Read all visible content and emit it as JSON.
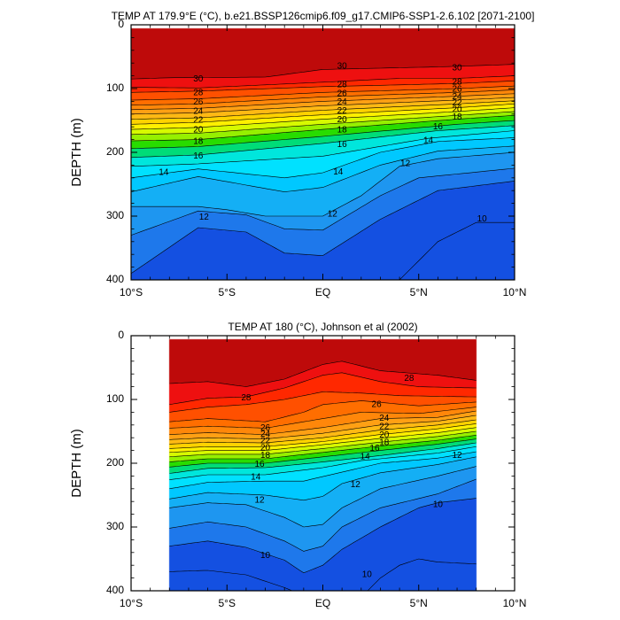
{
  "chart_data": [
    {
      "type": "heatmap",
      "subtype": "filled-contour",
      "title": "TEMP AT 179.9°E (°C), b.e21.BSSP126cmip6.f09_g17.CMIP6-SSP1-2.6.102 [2071-2100]",
      "ylabel": "DEPTH (m)",
      "xlabel": "",
      "x_ticks": [
        "10°S",
        "5°S",
        "EQ",
        "5°N",
        "10°N"
      ],
      "x_tick_values": [
        -10,
        -5,
        0,
        5,
        10
      ],
      "xlim": [
        -10,
        10
      ],
      "y_ticks": [
        "0",
        "100",
        "200",
        "300",
        "400"
      ],
      "y_tick_values": [
        0,
        100,
        200,
        300,
        400
      ],
      "ylim": [
        0,
        400
      ],
      "y_inverted": true,
      "data_xlim": [
        -10,
        10
      ],
      "data_ylim": [
        5,
        400
      ],
      "contour_interval": 1,
      "contour_labels": [
        {
          "v": 30,
          "x": -6.5,
          "y": 85
        },
        {
          "v": 28,
          "x": -6.5,
          "y": 107
        },
        {
          "v": 26,
          "x": -6.5,
          "y": 121
        },
        {
          "v": 24,
          "x": -6.5,
          "y": 136
        },
        {
          "v": 22,
          "x": -6.5,
          "y": 150
        },
        {
          "v": 20,
          "x": -6.5,
          "y": 165
        },
        {
          "v": 18,
          "x": -6.5,
          "y": 183
        },
        {
          "v": 16,
          "x": -6.5,
          "y": 206
        },
        {
          "v": 14,
          "x": -8.3,
          "y": 232
        },
        {
          "v": 12,
          "x": -6.2,
          "y": 302
        },
        {
          "v": 30,
          "x": 1.0,
          "y": 65
        },
        {
          "v": 28,
          "x": 1.0,
          "y": 94
        },
        {
          "v": 26,
          "x": 1.0,
          "y": 108
        },
        {
          "v": 24,
          "x": 1.0,
          "y": 121
        },
        {
          "v": 22,
          "x": 1.0,
          "y": 135
        },
        {
          "v": 20,
          "x": 1.0,
          "y": 149
        },
        {
          "v": 18,
          "x": 1.0,
          "y": 165
        },
        {
          "v": 16,
          "x": 1.0,
          "y": 188
        },
        {
          "v": 14,
          "x": 0.8,
          "y": 231
        },
        {
          "v": 12,
          "x": 0.5,
          "y": 297
        },
        {
          "v": 30,
          "x": 7.0,
          "y": 68
        },
        {
          "v": 28,
          "x": 7.0,
          "y": 90
        },
        {
          "v": 26,
          "x": 7.0,
          "y": 101
        },
        {
          "v": 24,
          "x": 7.0,
          "y": 113
        },
        {
          "v": 22,
          "x": 7.0,
          "y": 123
        },
        {
          "v": 20,
          "x": 7.0,
          "y": 133
        },
        {
          "v": 18,
          "x": 7.0,
          "y": 145
        },
        {
          "v": 16,
          "x": 6.0,
          "y": 160
        },
        {
          "v": 14,
          "x": 5.5,
          "y": 182
        },
        {
          "v": 12,
          "x": 4.3,
          "y": 218
        },
        {
          "v": 10,
          "x": 8.3,
          "y": 305
        }
      ]
    },
    {
      "type": "heatmap",
      "subtype": "filled-contour",
      "title": "TEMP AT 180 (°C), Johnson et al (2002)",
      "ylabel": "DEPTH (m)",
      "xlabel": "",
      "x_ticks": [
        "10°S",
        "5°S",
        "EQ",
        "5°N",
        "10°N"
      ],
      "x_tick_values": [
        -10,
        -5,
        0,
        5,
        10
      ],
      "xlim": [
        -10,
        10
      ],
      "y_ticks": [
        "0",
        "100",
        "200",
        "300",
        "400"
      ],
      "y_tick_values": [
        0,
        100,
        200,
        300,
        400
      ],
      "ylim": [
        0,
        400
      ],
      "y_inverted": true,
      "data_xlim": [
        -8,
        8
      ],
      "data_ylim": [
        5,
        400
      ],
      "contour_interval": 1,
      "contour_labels": [
        {
          "v": 28,
          "x": -4.0,
          "y": 98
        },
        {
          "v": 26,
          "x": -3.0,
          "y": 145
        },
        {
          "v": 24,
          "x": -3.0,
          "y": 155
        },
        {
          "v": 22,
          "x": -3.0,
          "y": 165
        },
        {
          "v": 20,
          "x": -3.0,
          "y": 176
        },
        {
          "v": 18,
          "x": -3.0,
          "y": 188
        },
        {
          "v": 16,
          "x": -3.3,
          "y": 202
        },
        {
          "v": 14,
          "x": -3.5,
          "y": 222
        },
        {
          "v": 12,
          "x": -3.3,
          "y": 258
        },
        {
          "v": 10,
          "x": -3.0,
          "y": 345
        },
        {
          "v": 28,
          "x": 4.5,
          "y": 67
        },
        {
          "v": 26,
          "x": 2.8,
          "y": 108
        },
        {
          "v": 24,
          "x": 3.2,
          "y": 130
        },
        {
          "v": 22,
          "x": 3.2,
          "y": 143
        },
        {
          "v": 20,
          "x": 3.2,
          "y": 156
        },
        {
          "v": 18,
          "x": 3.2,
          "y": 168
        },
        {
          "v": 16,
          "x": 2.7,
          "y": 177
        },
        {
          "v": 14,
          "x": 2.2,
          "y": 190
        },
        {
          "v": 12,
          "x": 1.7,
          "y": 234
        },
        {
          "v": 12,
          "x": 7.0,
          "y": 188
        },
        {
          "v": 10,
          "x": 6.0,
          "y": 265
        },
        {
          "v": 10,
          "x": 2.3,
          "y": 375
        }
      ]
    }
  ]
}
